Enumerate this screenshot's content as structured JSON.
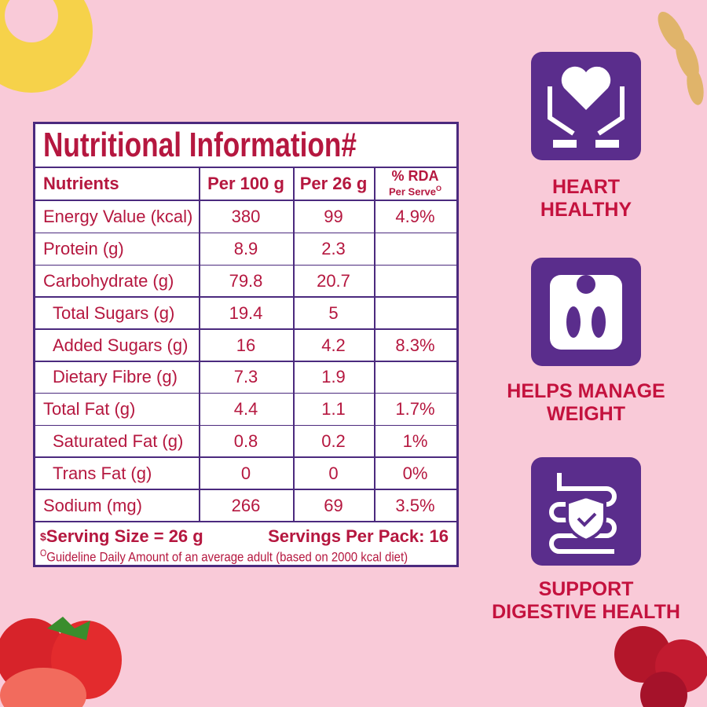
{
  "table": {
    "title": "Nutritional Information#",
    "header": [
      "Nutrients",
      "Per 100 g",
      "Per 26 g",
      "% RDA"
    ],
    "rda_sub": "Per Serve",
    "rda_mark": "O",
    "rows": [
      {
        "name": "Energy Value (kcal)",
        "indent": false,
        "cells": [
          "380",
          "99",
          "4.9%"
        ]
      },
      {
        "name": "Protein (g)",
        "indent": false,
        "cells": [
          "8.9",
          "2.3",
          null
        ]
      },
      {
        "name": "Carbohydrate (g)",
        "indent": false,
        "cells": [
          "79.8",
          "20.7",
          null
        ]
      },
      {
        "name": "Total Sugars (g)",
        "indent": true,
        "cells": [
          "19.4",
          "5",
          null
        ]
      },
      {
        "name": "Added Sugars (g)",
        "indent": true,
        "cells": [
          "16",
          "4.2",
          "8.3%"
        ]
      },
      {
        "name": "Dietary Fibre (g)",
        "indent": true,
        "cells": [
          "7.3",
          "1.9",
          null
        ]
      },
      {
        "name": "Total Fat (g)",
        "indent": false,
        "cells": [
          "4.4",
          "1.1",
          "1.7%"
        ]
      },
      {
        "name": "Saturated Fat (g)",
        "indent": true,
        "cells": [
          "0.8",
          "0.2",
          "1%"
        ]
      },
      {
        "name": "Trans Fat (g)",
        "indent": true,
        "cells": [
          "0",
          "0",
          "0%"
        ]
      },
      {
        "name": "Sodium (mg)",
        "indent": false,
        "cells": [
          "266",
          "69",
          "3.5%"
        ]
      }
    ],
    "serving_mark": "$",
    "serving_size": "Serving Size = 26 g",
    "servings_per_pack": "Servings Per Pack: 16",
    "note_mark": "O",
    "note": "Guideline Daily Amount of an average adult (based on 2000 kcal diet)"
  },
  "benefits": [
    {
      "line1": "HEART",
      "line2": "HEALTHY"
    },
    {
      "line1": "HELPS MANAGE",
      "line2": "WEIGHT"
    },
    {
      "line1": "SUPPORT",
      "line2": "DIGESTIVE HEALTH"
    }
  ]
}
